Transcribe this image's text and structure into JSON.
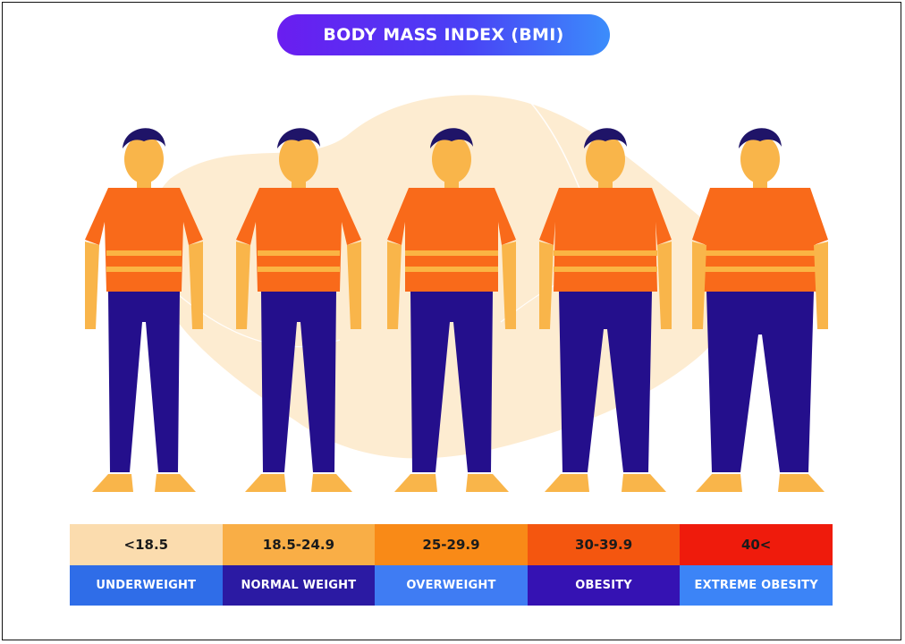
{
  "title": "BODY MASS INDEX (BMI)",
  "categories": [
    {
      "range": "<18.5",
      "label": "UNDERWEIGHT",
      "range_color": "#fbdcae",
      "label_color": "#2f6de8"
    },
    {
      "range": "18.5-24.9",
      "label": "NORMAL WEIGHT",
      "range_color": "#f9ae46",
      "label_color": "#2b1aa3"
    },
    {
      "range": "25-29.9",
      "label": "OVERWEIGHT",
      "range_color": "#f98a17",
      "label_color": "#3f7cf3"
    },
    {
      "range": "30-39.9",
      "label": "OBESITY",
      "range_color": "#f4560f",
      "label_color": "#3512b3"
    },
    {
      "range": "40<",
      "label": "EXTREME OBESITY",
      "range_color": "#ef1b0c",
      "label_color": "#3c84f7"
    }
  ],
  "colors": {
    "skin": "#f9b54a",
    "hair": "#1f1468",
    "shirt": "#f96a1a",
    "shirt_stripe": "#fbb443",
    "pants": "#240f8c",
    "background_blob": "#fde7c6"
  },
  "icons": [
    "person-figure-icon"
  ]
}
